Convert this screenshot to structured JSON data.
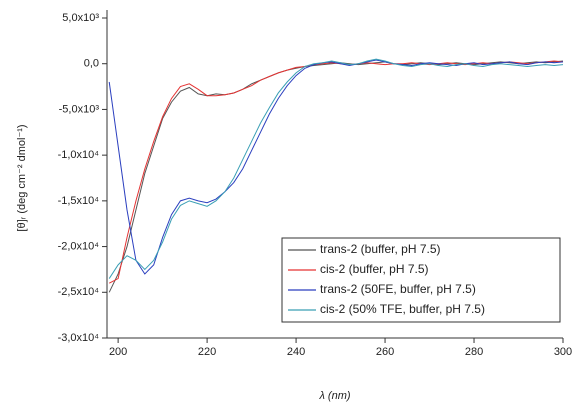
{
  "chart_data": {
    "type": "line",
    "y_label": "[θ]ᵣ (deg cm⁻² dmol⁻¹)",
    "x_label": "λ (nm)",
    "x": [
      198,
      200,
      202,
      204,
      206,
      208,
      210,
      212,
      214,
      216,
      218,
      220,
      222,
      224,
      226,
      228,
      230,
      232,
      234,
      236,
      238,
      240,
      242,
      244,
      246,
      248,
      250,
      252,
      254,
      256,
      258,
      260,
      262,
      264,
      266,
      268,
      270,
      272,
      274,
      276,
      278,
      280,
      282,
      284,
      286,
      288,
      290,
      292,
      294,
      296,
      298,
      300
    ],
    "series": [
      {
        "name": "trans-2 (buffer, pH 7.5)",
        "color": "#555555",
        "values": [
          -25000,
          -23000,
          -20000,
          -16000,
          -12000,
          -9000,
          -6000,
          -4200,
          -3000,
          -2600,
          -3300,
          -3500,
          -3300,
          -3400,
          -3200,
          -2800,
          -2200,
          -1800,
          -1400,
          -1000,
          -700,
          -500,
          -300,
          -200,
          -100,
          0,
          100,
          0,
          -100,
          0,
          100,
          200,
          0,
          -100,
          0,
          100,
          0,
          -100,
          0,
          100,
          0,
          -100,
          0,
          100,
          200,
          100,
          0,
          100,
          200,
          100,
          200,
          300
        ]
      },
      {
        "name": "cis-2 (buffer, pH 7.5)",
        "color": "#e53333",
        "values": [
          -24000,
          -23500,
          -19000,
          -15000,
          -11500,
          -8500,
          -5800,
          -3800,
          -2500,
          -2200,
          -2800,
          -3500,
          -3500,
          -3400,
          -3200,
          -2800,
          -2400,
          -1800,
          -1400,
          -1000,
          -700,
          -400,
          -300,
          -100,
          0,
          100,
          0,
          -100,
          0,
          100,
          0,
          -100,
          0,
          0,
          100,
          0,
          -100,
          0,
          100,
          0,
          -100,
          0,
          100,
          0,
          100,
          200,
          100,
          0,
          100,
          200,
          300,
          200
        ]
      },
      {
        "name": "trans-2 (50FE, buffer, pH 7.5)",
        "color": "#2b3fbf",
        "values": [
          -2000,
          -9000,
          -16000,
          -21500,
          -23000,
          -22000,
          -19000,
          -16500,
          -15000,
          -14700,
          -15000,
          -15200,
          -14800,
          -14000,
          -13000,
          -11500,
          -9500,
          -7500,
          -5500,
          -3800,
          -2400,
          -1300,
          -500,
          -100,
          100,
          200,
          0,
          -200,
          0,
          200,
          400,
          200,
          0,
          -100,
          -200,
          0,
          100,
          0,
          -100,
          -200,
          0,
          100,
          -100,
          0,
          100,
          200,
          0,
          -100,
          100,
          200,
          100,
          200
        ]
      },
      {
        "name": "cis-2 (50% TFE, buffer, pH 7.5)",
        "color": "#3a9fb5",
        "values": [
          -23500,
          -22000,
          -21000,
          -21500,
          -22500,
          -21500,
          -19500,
          -17000,
          -15500,
          -15000,
          -15300,
          -15600,
          -15000,
          -14000,
          -12500,
          -10500,
          -8500,
          -6500,
          -4800,
          -3200,
          -2000,
          -1000,
          -300,
          0,
          100,
          300,
          100,
          -100,
          0,
          300,
          500,
          300,
          0,
          -200,
          -300,
          -100,
          0,
          -200,
          -300,
          -100,
          0,
          -200,
          -300,
          -100,
          0,
          -100,
          -200,
          -300,
          -200,
          -100,
          -200,
          -100
        ]
      }
    ],
    "xlim": [
      197.5,
      300
    ],
    "xticks": [
      200,
      220,
      240,
      260,
      280,
      300
    ],
    "ylim": [
      -30000,
      5000
    ],
    "yticks": [
      {
        "value": 5000,
        "label": "5,0x10³"
      },
      {
        "value": 0,
        "label": "0,0"
      },
      {
        "value": -5000,
        "label": "-5,0x10³"
      },
      {
        "value": -10000,
        "label": "-1,0x10⁴"
      },
      {
        "value": -15000,
        "label": "-1,5x10⁴"
      },
      {
        "value": -20000,
        "label": "-2,0x10⁴"
      },
      {
        "value": -25000,
        "label": "-2,5x10⁴"
      },
      {
        "value": -30000,
        "label": "-3,0x10⁴"
      }
    ],
    "legend": "lower right"
  }
}
